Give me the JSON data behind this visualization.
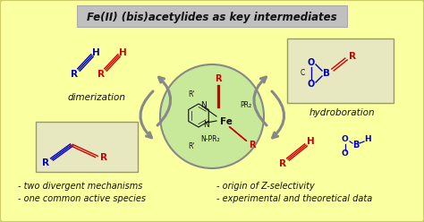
{
  "bg_color": "#FAFFA0",
  "outer_border_color": "#CCCC66",
  "title_box_color": "#C0C0C0",
  "title_text": "Fe(II) (bis)acetylides as key intermediates",
  "title_fontsize": 8.5,
  "circle_color": "#C8E89A",
  "circle_edge_color": "#888888",
  "dimerization_label": "dimerization",
  "hydroboration_label": "hydroboration",
  "bullet1_left": "- two divergent mechanisms",
  "bullet2_left": "- one common active species",
  "bullet1_right": "- origin of Z-selectivity",
  "bullet2_right": "- experimental and theoretical data",
  "red": "#CC0000",
  "blue": "#0000BB",
  "arrow_color": "#888888",
  "black": "#111111",
  "box_bg": "#E8E8C0",
  "box_edge": "#999966"
}
